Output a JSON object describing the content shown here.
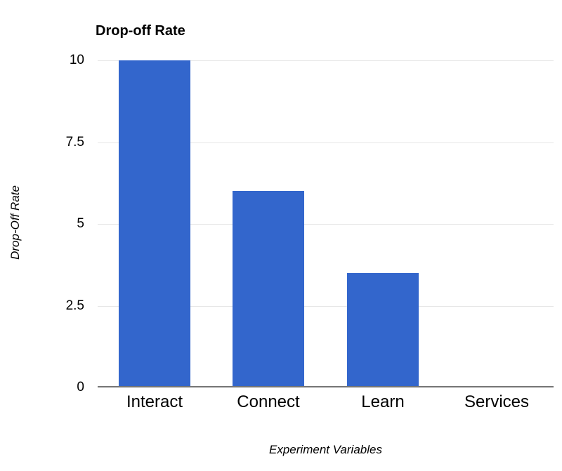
{
  "chart_data": {
    "type": "bar",
    "title": "Drop-off Rate",
    "categories": [
      "Interact",
      "Connect",
      "Learn",
      "Services"
    ],
    "values": [
      10,
      6,
      3.5,
      0
    ],
    "xlabel": "Experiment Variables",
    "ylabel": "Drop-Off Rate",
    "yticks": [
      0,
      2.5,
      5,
      7.5,
      10
    ],
    "ylim": [
      0,
      10
    ],
    "grid": true,
    "legend_position": "none",
    "bar_color": "#3366cc",
    "gridline_color": "#e6e6e6",
    "axis_line_color": "#757575",
    "text_color": "#000000"
  }
}
